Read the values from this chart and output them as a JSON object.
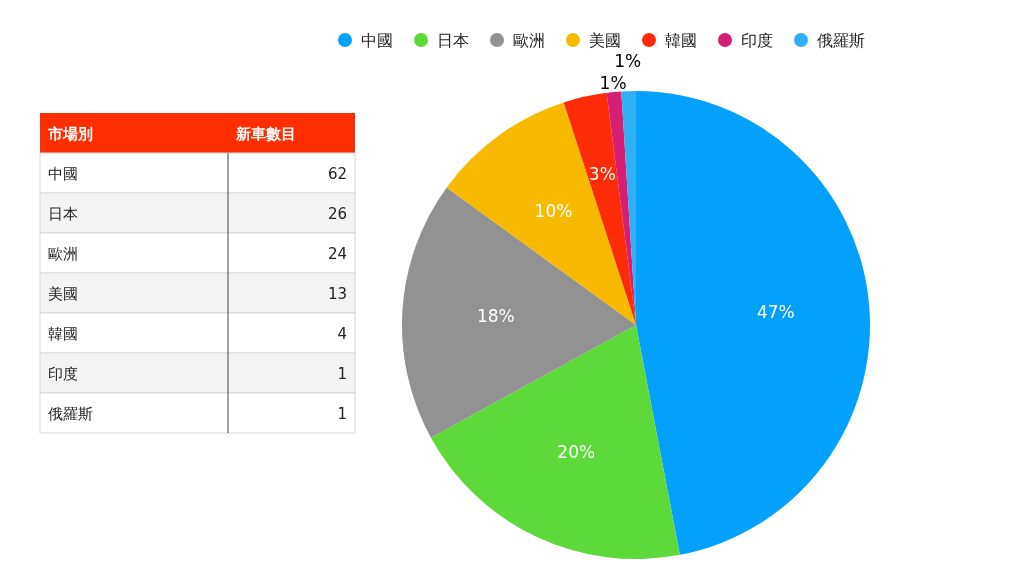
{
  "chart_data": [
    {
      "type": "other",
      "xlabel": "市場別",
      "ylabel": "新車數目",
      "categories": [
        "中國",
        "日本",
        "歐洲",
        "美國",
        "韓國",
        "印度",
        "俄羅斯"
      ],
      "values": [
        62,
        26,
        24,
        13,
        4,
        1,
        1
      ],
      "data_labels": true
    },
    {
      "type": "pie",
      "categories": [
        "中國",
        "日本",
        "歐洲",
        "美國",
        "韓國",
        "印度",
        "俄羅斯"
      ],
      "values": [
        47,
        20,
        18,
        10,
        3,
        1,
        1
      ],
      "value_labels": [
        "47%",
        "20%",
        "18%",
        "10%",
        "3%",
        "1%",
        "1%"
      ],
      "colors": [
        "#03a1fc",
        "#5ed93a",
        "#929292",
        "#f8ba00",
        "#fd2b06",
        "#d41f74",
        "#2fb0f5"
      ],
      "legend": "top"
    }
  ]
}
